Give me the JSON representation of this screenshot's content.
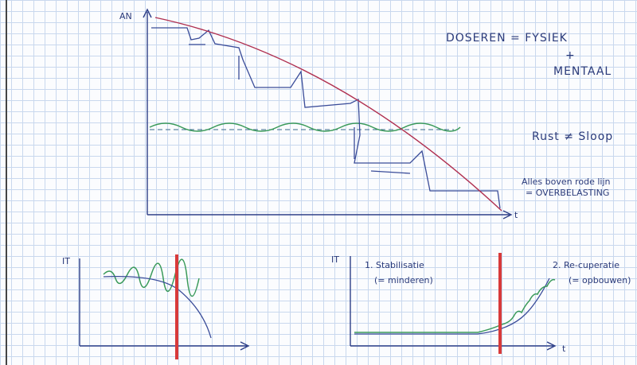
{
  "main": {
    "y_label": "AN",
    "x_label": "t"
  },
  "notes": {
    "doseren": "DOSEREN = FYSIEK",
    "plus": "+",
    "mentaal": "MENTAAL",
    "rust": "Rust ≠ Sloop",
    "boven": "Alles boven rode lijn",
    "overbelasting": "= OVERBELASTING"
  },
  "bottom_left": {
    "y_label": "IT"
  },
  "bottom_right": {
    "y_label": "IT",
    "x_label": "t",
    "phase1": "1. Stabilisatie",
    "phase1_note": "(= minderen)",
    "phase2": "2. Re-cuperatie",
    "phase2_note": "(= opbouwen)"
  }
}
